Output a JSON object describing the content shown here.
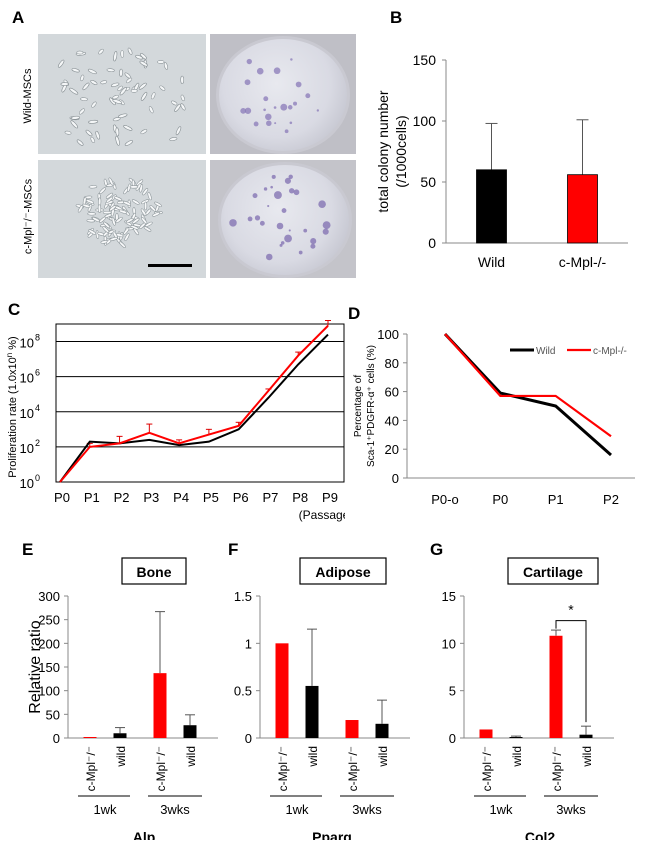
{
  "panel_letters": {
    "a": "A",
    "b": "B",
    "c": "C",
    "d": "D",
    "e": "E",
    "f": "F",
    "g": "G"
  },
  "panel_a": {
    "row_labels": [
      "Wild-MSCs",
      "c-Mpl⁻/⁻-MSCs"
    ]
  },
  "chart_data": [
    {
      "panel": "B",
      "type": "bar",
      "categories": [
        "Wild",
        "c-Mpl-/-"
      ],
      "values": [
        60,
        56
      ],
      "errors": [
        38,
        45
      ],
      "colors": [
        "#000000",
        "#ff0000"
      ],
      "ylabel_lines": [
        "total colony number",
        "(/1000cells)"
      ],
      "ylim": [
        0,
        150
      ],
      "yticks": [
        "0",
        "50",
        "100",
        "150"
      ]
    },
    {
      "panel": "C",
      "type": "line",
      "categories": [
        "P0",
        "P1",
        "P2",
        "P3",
        "P4",
        "P5",
        "P6",
        "P7",
        "P8",
        "P9"
      ],
      "scale": "log",
      "series": [
        {
          "color": "#000000",
          "values_log10": [
            0,
            2.3,
            2.2,
            2.4,
            2.1,
            2.3,
            3.0,
            4.8,
            6.7,
            8.4
          ]
        },
        {
          "color": "#ff0000",
          "values_log10": [
            0,
            2.0,
            2.2,
            2.8,
            2.2,
            2.7,
            3.2,
            5.2,
            7.2,
            8.9
          ],
          "errors_log10": [
            0,
            0.2,
            0.4,
            0.5,
            0.2,
            0.3,
            0.2,
            0.1,
            0.2,
            0.3
          ]
        }
      ],
      "ylabel": "Proliferation rate (1.0x10",
      "ylabel_sup": "n",
      "ylabel_end": " %)",
      "ytick_base": "10",
      "ytick_exps": [
        "0",
        "2",
        "4",
        "6",
        "8"
      ],
      "xunit": "(Passage)"
    },
    {
      "panel": "D",
      "type": "line",
      "categories": [
        "P0-o",
        "P0",
        "P1",
        "P2"
      ],
      "series": [
        {
          "name": "Wild",
          "color": "#000000",
          "values": [
            100,
            59,
            50,
            16
          ]
        },
        {
          "name": "c-Mpl-/-",
          "color": "#ff0000",
          "values": [
            100,
            57,
            57,
            29
          ]
        }
      ],
      "ylabel_lines": [
        "Percentage of",
        "Sca-1⁺PDGFR-α⁺ cells (%)"
      ],
      "ylim": [
        0,
        100
      ],
      "yticks": [
        "0",
        "20",
        "40",
        "60",
        "80",
        "100"
      ],
      "legend": "top-right"
    },
    {
      "panel": "E",
      "type": "bar",
      "title": "Bone",
      "gene": "Alp",
      "ylabel": "Relative ratio",
      "categories": [
        "c-Mpl⁻/⁻",
        "wild",
        "c-Mpl⁻/⁻",
        "wild"
      ],
      "groups": [
        "1wk",
        "3wks"
      ],
      "values": [
        0,
        10,
        137,
        27
      ],
      "errors": [
        0,
        12,
        130,
        22
      ],
      "colors": [
        "#ff0000",
        "#000000",
        "#ff0000",
        "#000000"
      ],
      "ylim": [
        0,
        300
      ],
      "yticks": [
        "0",
        "50",
        "100",
        "150",
        "200",
        "250",
        "300"
      ]
    },
    {
      "panel": "F",
      "type": "bar",
      "title": "Adipose",
      "gene": "Pparg",
      "categories": [
        "c-Mpl⁻/⁻",
        "wild",
        "c-Mpl⁻/⁻",
        "wild"
      ],
      "groups": [
        "1wk",
        "3wks"
      ],
      "values": [
        1.0,
        0.55,
        0.19,
        0.15
      ],
      "errors": [
        0,
        0.6,
        0,
        0.25
      ],
      "colors": [
        "#ff0000",
        "#000000",
        "#ff0000",
        "#000000"
      ],
      "ylim": [
        0,
        1.5
      ],
      "yticks": [
        "0",
        "0.5",
        "1",
        "1.5"
      ]
    },
    {
      "panel": "G",
      "type": "bar",
      "title": "Cartilage",
      "gene": "Col2",
      "categories": [
        "c-Mpl⁻/⁻",
        "wild",
        "c-Mpl⁻/⁻",
        "wild"
      ],
      "groups": [
        "1wk",
        "3wks"
      ],
      "values": [
        0.9,
        0.05,
        10.8,
        0.35
      ],
      "errors": [
        0,
        0.15,
        0.6,
        0.9
      ],
      "colors": [
        "#ff0000",
        "#000000",
        "#ff0000",
        "#000000"
      ],
      "ylim": [
        0,
        15
      ],
      "yticks": [
        "0",
        "5",
        "10",
        "15"
      ],
      "significance": "*"
    }
  ]
}
